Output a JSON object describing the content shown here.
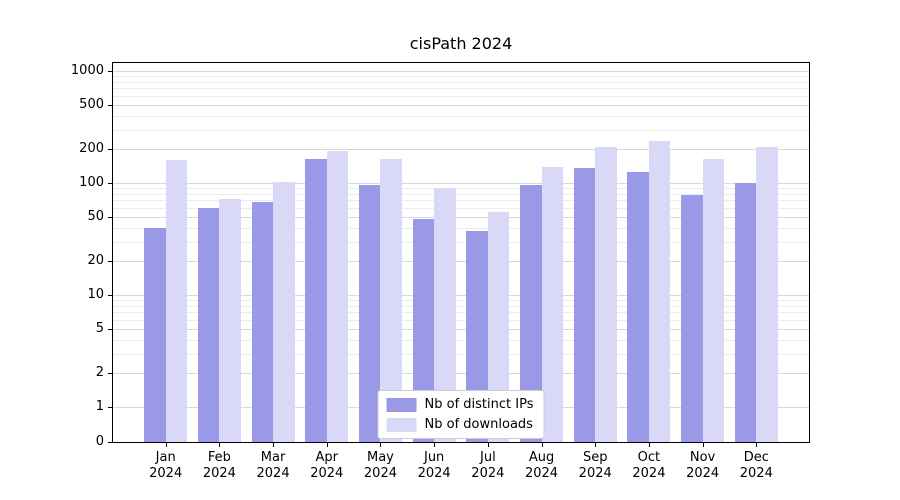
{
  "chart_data": {
    "type": "bar",
    "title": "cisPath 2024",
    "scale": "symlog",
    "grid": true,
    "legend_position": "lower center",
    "xlabel": "",
    "ylabel": "",
    "yticks": [
      0,
      1,
      2,
      5,
      10,
      20,
      50,
      100,
      200,
      500,
      1000
    ],
    "ylim": [
      0,
      1400
    ],
    "categories": [
      "Jan 2024",
      "Feb 2024",
      "Mar 2024",
      "Apr 2024",
      "May 2024",
      "Jun 2024",
      "Jul 2024",
      "Aug 2024",
      "Sep 2024",
      "Oct 2024",
      "Nov 2024",
      "Dec 2024"
    ],
    "series": [
      {
        "name": "Nb of distinct IPs",
        "color": "#9999e8",
        "values": [
          40,
          60,
          68,
          165,
          95,
          48,
          37,
          95,
          135,
          125,
          78,
          100
        ]
      },
      {
        "name": "Nb of downloads",
        "color": "#d9d9f7",
        "values": [
          160,
          72,
          102,
          195,
          165,
          90,
          55,
          140,
          210,
          235,
          165,
          210
        ]
      }
    ]
  }
}
